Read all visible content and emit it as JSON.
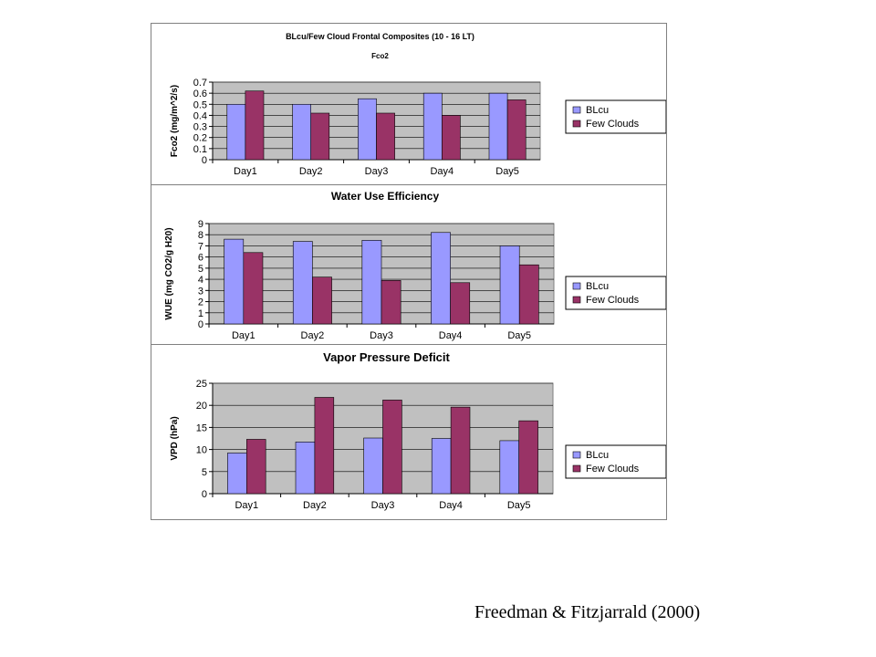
{
  "figure": {
    "citation": "Freedman & Fitzjarrald (2000)"
  },
  "colors": {
    "blcu": "#9999FF",
    "few_clouds": "#993366",
    "plot_background": "#C0C0C0",
    "gridline": "#000000"
  },
  "chart_data": [
    {
      "type": "bar",
      "title": "BLcu/Few Cloud Frontal Composites (10 - 16 LT)",
      "subtitle": "Fco2",
      "xlabel": "",
      "ylabel": "Fco2 (mg/m^2/s)",
      "categories": [
        "Day1",
        "Day2",
        "Day3",
        "Day4",
        "Day5"
      ],
      "yticks": [
        "0",
        "0.1",
        "0.2",
        "0.3",
        "0.4",
        "0.5",
        "0.6",
        "0.7"
      ],
      "ylim": [
        0,
        0.7
      ],
      "grid": true,
      "legend_position": "right",
      "series": [
        {
          "name": "BLcu",
          "values": [
            0.5,
            0.5,
            0.55,
            0.6,
            0.6
          ]
        },
        {
          "name": "Few Clouds",
          "values": [
            0.62,
            0.42,
            0.42,
            0.4,
            0.54
          ]
        }
      ]
    },
    {
      "type": "bar",
      "title": "Water Use Efficiency",
      "xlabel": "",
      "ylabel": "WUE (mg CO2/g H20)",
      "categories": [
        "Day1",
        "Day2",
        "Day3",
        "Day4",
        "Day5"
      ],
      "yticks": [
        "0",
        "1",
        "2",
        "3",
        "4",
        "5",
        "6",
        "7",
        "8",
        "9"
      ],
      "ylim": [
        0,
        9
      ],
      "grid": true,
      "legend_position": "right",
      "series": [
        {
          "name": "BLcu",
          "values": [
            7.6,
            7.4,
            7.5,
            8.2,
            7.0
          ]
        },
        {
          "name": "Few Clouds",
          "values": [
            6.4,
            4.2,
            3.9,
            3.7,
            5.3
          ]
        }
      ]
    },
    {
      "type": "bar",
      "title": "Vapor Pressure Deficit",
      "xlabel": "",
      "ylabel": "VPD (hPa)",
      "categories": [
        "Day1",
        "Day2",
        "Day3",
        "Day4",
        "Day5"
      ],
      "yticks": [
        "0",
        "5",
        "10",
        "15",
        "20",
        "25"
      ],
      "ylim": [
        0,
        25
      ],
      "grid": true,
      "legend_position": "right",
      "series": [
        {
          "name": "BLcu",
          "values": [
            9.2,
            11.7,
            12.6,
            12.5,
            12.0
          ]
        },
        {
          "name": "Few Clouds",
          "values": [
            12.3,
            21.8,
            21.2,
            19.6,
            16.5
          ]
        }
      ]
    }
  ]
}
